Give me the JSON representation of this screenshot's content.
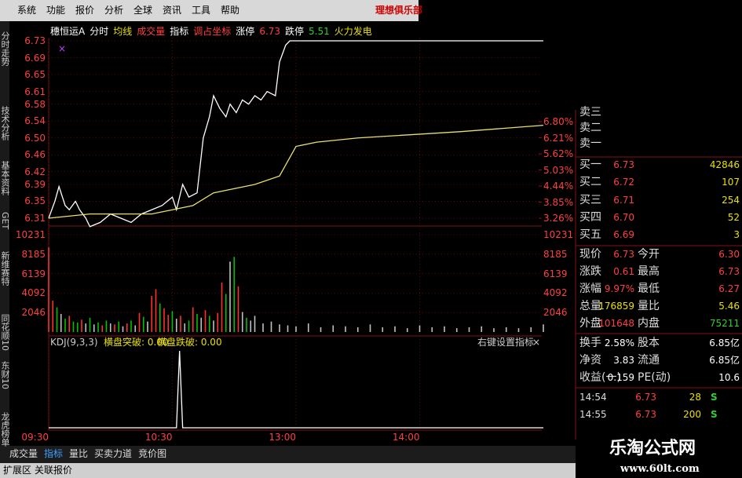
{
  "menu": {
    "items": [
      "系统",
      "功能",
      "报价",
      "分析",
      "全球",
      "资讯",
      "工具",
      "帮助"
    ],
    "brand": "理想俱乐部"
  },
  "sidebar": [
    "分时走势",
    "技术分析",
    "基本资料",
    "GET",
    "新维赛特",
    "同花顺10",
    "东财10",
    "龙虎榜单"
  ],
  "header": [
    "穗恒运A",
    "分时",
    "均线",
    "成交量",
    "指标",
    "调占坐标",
    "涨停",
    "6.73",
    "跌停",
    "5.51",
    "火力发电"
  ],
  "chart_data": {
    "type": "line",
    "marker": "×",
    "x": [
      0,
      3,
      5,
      8,
      10,
      13,
      15,
      18,
      20,
      25,
      30,
      35,
      40,
      45,
      50,
      55,
      60,
      62,
      65,
      68,
      72,
      75,
      78,
      80,
      83,
      86,
      88,
      91,
      94,
      97,
      100,
      103,
      106,
      110,
      112,
      115,
      117,
      240
    ],
    "series": [
      {
        "color": "#ffffff",
        "values": [
          6.31,
          6.35,
          6.385,
          6.34,
          6.33,
          6.35,
          6.33,
          6.31,
          6.29,
          6.3,
          6.32,
          6.31,
          6.3,
          6.32,
          6.33,
          6.34,
          6.36,
          6.33,
          6.39,
          6.36,
          6.37,
          6.5,
          6.55,
          6.6,
          6.57,
          6.55,
          6.58,
          6.56,
          6.59,
          6.58,
          6.6,
          6.59,
          6.61,
          6.6,
          6.68,
          6.72,
          6.73,
          6.73
        ]
      }
    ],
    "avg": {
      "color": "#e8e070",
      "x": [
        0,
        20,
        50,
        70,
        80,
        100,
        112,
        120,
        130,
        150,
        200,
        240
      ],
      "values": [
        6.31,
        6.32,
        6.32,
        6.34,
        6.37,
        6.39,
        6.41,
        6.48,
        6.49,
        6.5,
        6.515,
        6.53
      ]
    },
    "xlim": [
      0,
      240
    ],
    "ylim": [
      6.31,
      6.73
    ],
    "yticks": [
      6.73,
      6.69,
      6.65,
      6.61,
      6.58,
      6.54,
      {
        "value": 6.5,
        "label": "6.50"
      },
      6.46,
      6.42,
      6.39,
      6.35,
      6.31
    ],
    "pticks": [
      {
        "value": 6.8,
        "label": "6.80%"
      },
      {
        "value": 6.21,
        "label": "6.21%"
      },
      {
        "value": 5.62,
        "label": "5.62%"
      },
      {
        "value": 5.03,
        "label": "5.03%"
      },
      {
        "value": 4.44,
        "label": "4.44%"
      },
      {
        "value": 3.85,
        "label": "3.85%"
      },
      {
        "value": 3.26,
        "label": "3.26%"
      }
    ],
    "xticks": [
      {
        "value": 0,
        "label": "09:30"
      },
      {
        "value": 60,
        "label": "10:30"
      },
      {
        "value": 120,
        "label": "13:00"
      },
      {
        "value": 180,
        "label": "14:00"
      }
    ],
    "volume": {
      "colors": {
        "up": "#ff3030",
        "down": "#00c000",
        "flat": "#c0c0c0"
      },
      "ylim": [
        0,
        10231
      ],
      "yticks": [
        10231,
        8185,
        6139,
        4092,
        2046
      ],
      "x": [
        0,
        2,
        4,
        6,
        8,
        10,
        12,
        14,
        16,
        18,
        20,
        22,
        24,
        26,
        28,
        30,
        32,
        34,
        36,
        38,
        40,
        42,
        44,
        46,
        48,
        50,
        52,
        54,
        56,
        58,
        60,
        62,
        64,
        66,
        68,
        70,
        72,
        74,
        76,
        78,
        80,
        82,
        84,
        86,
        88,
        90,
        92,
        94,
        96,
        98,
        100,
        104,
        108,
        112,
        116,
        120,
        126,
        132,
        138,
        144,
        150,
        156,
        162,
        168,
        174,
        180,
        186,
        192,
        198,
        204,
        210,
        216,
        222,
        228,
        234,
        240
      ],
      "values": [
        8900,
        3300,
        2600,
        1900,
        1400,
        1700,
        1100,
        1000,
        1300,
        900,
        1500,
        800,
        1000,
        700,
        1200,
        900,
        800,
        1100,
        600,
        900,
        1200,
        700,
        2000,
        1600,
        1100,
        3800,
        4500,
        3000,
        2500,
        1800,
        2200,
        1400,
        1700,
        900,
        1200,
        2600,
        1900,
        1500,
        2300,
        1700,
        1200,
        2000,
        5200,
        4000,
        7400,
        7900,
        4800,
        2100,
        1500,
        1200,
        1700,
        900,
        1100,
        800,
        700,
        600,
        900,
        500,
        700,
        600,
        500,
        800,
        500,
        600,
        400,
        700,
        500,
        600,
        400,
        500,
        600,
        400,
        500,
        400,
        500,
        800
      ],
      "dir": [
        "up",
        "up",
        "down",
        "flat",
        "down",
        "up",
        "down",
        "down",
        "up",
        "flat",
        "down",
        "flat",
        "down",
        "up",
        "down",
        "flat",
        "up",
        "down",
        "flat",
        "up",
        "down",
        "flat",
        "up",
        "down",
        "flat",
        "up",
        "up",
        "down",
        "up",
        "up",
        "down",
        "flat",
        "up",
        "flat",
        "down",
        "up",
        "down",
        "flat",
        "up",
        "down",
        "flat",
        "up",
        "up",
        "down",
        "flat",
        "down",
        "up",
        "flat",
        "down",
        "flat",
        "flat",
        "flat",
        "flat",
        "flat",
        "flat",
        "flat",
        "flat",
        "flat",
        "flat",
        "flat",
        "flat",
        "flat",
        "flat",
        "flat",
        "flat",
        "flat",
        "flat",
        "flat",
        "flat",
        "flat",
        "flat",
        "flat",
        "flat",
        "flat",
        "flat",
        "flat"
      ]
    },
    "kdj": {
      "label": "KDJ(9,3,3)",
      "items": [
        "横盘突破: 0.00",
        "横盘跌破: 0.00"
      ],
      "hint": "右键设置指标",
      "close": "×",
      "ylim": [
        0,
        100
      ],
      "x": [
        0,
        62,
        63.5,
        65,
        240
      ],
      "values": [
        0,
        0,
        100,
        0,
        0
      ]
    }
  },
  "order_book": {
    "sell": [
      "卖三",
      "卖二",
      "卖一"
    ],
    "buy": [
      {
        "label": "买一",
        "price": "6.73",
        "volume": "42846"
      },
      {
        "label": "买二",
        "price": "6.72",
        "volume": "107"
      },
      {
        "label": "买三",
        "price": "6.71",
        "volume": "254"
      },
      {
        "label": "买四",
        "price": "6.70",
        "volume": "52"
      },
      {
        "label": "买五",
        "price": "6.69",
        "volume": "3"
      }
    ]
  },
  "quote": [
    [
      "现价",
      "6.73",
      "今开",
      "6.30"
    ],
    [
      "涨跌",
      "0.61",
      "最高",
      "6.73"
    ],
    [
      "涨幅",
      "9.97%",
      "最低",
      "6.27"
    ],
    [
      "总量",
      "176859",
      "量比",
      "5.46"
    ],
    [
      "外盘",
      "101648",
      "内盘",
      "75211"
    ],
    [
      "换手",
      "2.58%",
      "股本",
      "6.85亿"
    ],
    [
      "净资",
      "3.83",
      "流通",
      "6.85亿"
    ],
    [
      "收益(一)",
      "0.159",
      "PE(动)",
      "10.6"
    ]
  ],
  "ticks": [
    [
      "14:54",
      "6.73",
      "28",
      "S"
    ],
    [
      "14:55",
      "6.73",
      "200",
      "S"
    ]
  ],
  "bottom_tabs": [
    "成交量",
    "指标",
    "量比",
    "买卖力道",
    "竞价图"
  ],
  "bottom_bar": [
    "扩展区",
    "关联报价"
  ],
  "watermark": [
    "乐淘公式网",
    "www.60lt.com"
  ]
}
